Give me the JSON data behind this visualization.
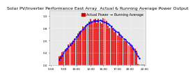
{
  "title": "Solar PV/Inverter Performance East Array  Actual & Running Average Power Output",
  "bg_color": "#ffffff",
  "plot_bg_color": "#e8e8e8",
  "bar_color": "#dd0000",
  "bar_edge_color": "#ffffff",
  "avg_line_color": "#0000ff",
  "grid_color": "#ffffff",
  "n_bars": 60,
  "peak_index": 28,
  "peak_value": 1.0,
  "ylim": [
    0,
    1.1
  ],
  "xlabel_color": "#000000",
  "ylabel_color": "#000000",
  "legend_actual": "Actual Power",
  "legend_avg": "Running Average",
  "title_fontsize": 4.5,
  "tick_fontsize": 3.0,
  "legend_fontsize": 3.5
}
